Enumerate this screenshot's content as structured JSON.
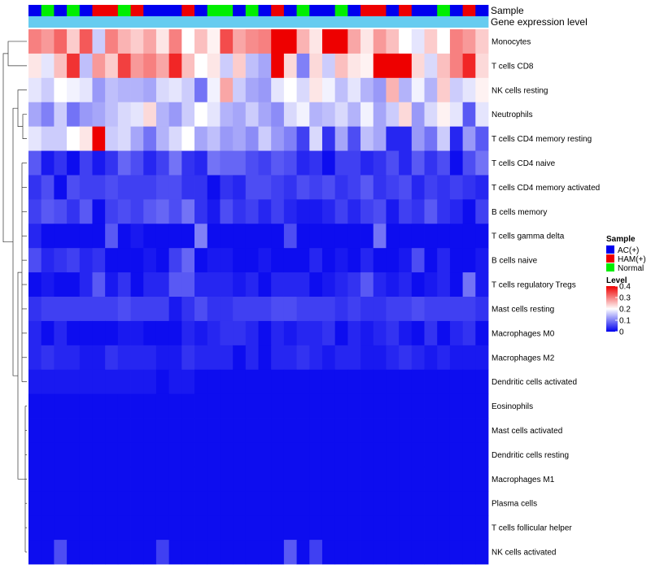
{
  "chart_data": {
    "type": "heatmap",
    "title": "",
    "annotation_tracks": [
      {
        "name": "Sample",
        "values": [
          "AC(+)",
          "Normal",
          "AC(+)",
          "Normal",
          "AC(+)",
          "HAM(+)",
          "HAM(+)",
          "Normal",
          "HAM(+)",
          "AC(+)",
          "AC(+)",
          "AC(+)",
          "HAM(+)",
          "AC(+)",
          "Normal",
          "Normal",
          "AC(+)",
          "Normal",
          "AC(+)",
          "HAM(+)",
          "AC(+)",
          "Normal",
          "AC(+)",
          "AC(+)",
          "Normal",
          "AC(+)",
          "HAM(+)",
          "HAM(+)",
          "AC(+)",
          "HAM(+)",
          "AC(+)",
          "AC(+)",
          "Normal",
          "AC(+)",
          "HAM(+)",
          "AC(+)"
        ]
      },
      {
        "name": "Gene expression level",
        "values": [
          "Gene expression level",
          "Gene expression level",
          "Gene expression level",
          "Gene expression level",
          "Gene expression level",
          "Gene expression level",
          "Gene expression level",
          "Gene expression level",
          "Gene expression level",
          "Gene expression level",
          "Gene expression level",
          "Gene expression level",
          "Gene expression level",
          "Gene expression level",
          "Gene expression level",
          "Gene expression level",
          "Gene expression level",
          "Gene expression level",
          "Gene expression level",
          "Gene expression level",
          "Gene expression level",
          "Gene expression level",
          "Gene expression level",
          "Gene expression level",
          "Gene expression level",
          "Gene expression level",
          "Gene expression level",
          "Gene expression level",
          "Gene expression level",
          "Gene expression level",
          "Gene expression level",
          "Gene expression level",
          "Gene expression level",
          "Gene expression level",
          "Gene expression level",
          "Gene expression level"
        ]
      }
    ],
    "rows": [
      {
        "label": "Monocytes",
        "values": [
          0.3,
          0.28,
          0.32,
          0.24,
          0.33,
          0.16,
          0.3,
          0.26,
          0.24,
          0.27,
          0.22,
          0.3,
          0.2,
          0.25,
          0.21,
          0.34,
          0.27,
          0.29,
          0.3,
          0.41,
          0.41,
          0.26,
          0.22,
          0.4,
          0.41,
          0.27,
          0.22,
          0.28,
          0.25,
          0.2,
          0.18,
          0.24,
          0.2,
          0.3,
          0.28,
          0.24
        ]
      },
      {
        "label": "T cells CD8",
        "values": [
          0.22,
          0.18,
          0.25,
          0.36,
          0.15,
          0.28,
          0.24,
          0.35,
          0.28,
          0.3,
          0.27,
          0.37,
          0.25,
          0.2,
          0.22,
          0.16,
          0.24,
          0.15,
          0.13,
          0.41,
          0.23,
          0.1,
          0.23,
          0.16,
          0.25,
          0.22,
          0.21,
          0.42,
          0.42,
          0.42,
          0.23,
          0.17,
          0.25,
          0.3,
          0.37,
          0.23
        ]
      },
      {
        "label": "NK cells resting",
        "values": [
          0.18,
          0.16,
          0.2,
          0.19,
          0.18,
          0.12,
          0.15,
          0.14,
          0.14,
          0.13,
          0.17,
          0.18,
          0.16,
          0.09,
          0.19,
          0.27,
          0.16,
          0.13,
          0.12,
          0.18,
          0.2,
          0.17,
          0.22,
          0.19,
          0.15,
          0.18,
          0.14,
          0.12,
          0.26,
          0.14,
          0.19,
          0.14,
          0.24,
          0.16,
          0.18,
          0.21
        ]
      },
      {
        "label": "Neutrophils",
        "values": [
          0.13,
          0.1,
          0.16,
          0.09,
          0.12,
          0.13,
          0.15,
          0.17,
          0.18,
          0.23,
          0.14,
          0.12,
          0.16,
          0.2,
          0.18,
          0.14,
          0.13,
          0.16,
          0.13,
          0.11,
          0.17,
          0.19,
          0.14,
          0.15,
          0.17,
          0.14,
          0.19,
          0.13,
          0.16,
          0.23,
          0.12,
          0.17,
          0.21,
          0.18,
          0.07,
          0.18
        ]
      },
      {
        "label": "T cells CD4 memory resting",
        "values": [
          0.18,
          0.16,
          0.16,
          0.2,
          0.22,
          0.4,
          0.16,
          0.17,
          0.13,
          0.09,
          0.14,
          0.17,
          0.2,
          0.13,
          0.15,
          0.12,
          0.13,
          0.11,
          0.16,
          0.12,
          0.1,
          0.05,
          0.17,
          0.04,
          0.13,
          0.06,
          0.15,
          0.13,
          0.03,
          0.03,
          0.12,
          0.09,
          0.16,
          0.03,
          0.12,
          0.07
        ]
      },
      {
        "label": "T cells CD4 naive",
        "values": [
          0.07,
          0.02,
          0.04,
          0.01,
          0.05,
          0.02,
          0.04,
          0.08,
          0.06,
          0.03,
          0.05,
          0.09,
          0.04,
          0.03,
          0.09,
          0.08,
          0.08,
          0.06,
          0.05,
          0.07,
          0.06,
          0.03,
          0.04,
          0.01,
          0.05,
          0.05,
          0.03,
          0.04,
          0.06,
          0.03,
          0.07,
          0.04,
          0.06,
          0.01,
          0.06,
          0.09
        ]
      },
      {
        "label": "T cells CD4 memory activated",
        "values": [
          0.04,
          0.06,
          0.01,
          0.06,
          0.05,
          0.05,
          0.06,
          0.05,
          0.05,
          0.05,
          0.06,
          0.06,
          0.04,
          0.04,
          0.01,
          0.04,
          0.03,
          0.06,
          0.06,
          0.05,
          0.04,
          0.06,
          0.05,
          0.06,
          0.04,
          0.05,
          0.07,
          0.04,
          0.05,
          0.06,
          0.03,
          0.05,
          0.04,
          0.05,
          0.04,
          0.03
        ]
      },
      {
        "label": "B cells memory",
        "values": [
          0.05,
          0.07,
          0.06,
          0.04,
          0.07,
          0.01,
          0.05,
          0.06,
          0.05,
          0.07,
          0.08,
          0.06,
          0.09,
          0.04,
          0.02,
          0.06,
          0.04,
          0.05,
          0.03,
          0.05,
          0.03,
          0.02,
          0.02,
          0.03,
          0.05,
          0.03,
          0.05,
          0.06,
          0.02,
          0.05,
          0.04,
          0.07,
          0.04,
          0.03,
          0.01,
          0.05
        ]
      },
      {
        "label": "T cells gamma delta",
        "values": [
          0.03,
          0.01,
          0.01,
          0.01,
          0.01,
          0.01,
          0.07,
          0.01,
          0.02,
          0.01,
          0.01,
          0.01,
          0.01,
          0.1,
          0.01,
          0.01,
          0.01,
          0.01,
          0.01,
          0.01,
          0.06,
          0.01,
          0.01,
          0.01,
          0.01,
          0.01,
          0.01,
          0.09,
          0.01,
          0.01,
          0.01,
          0.01,
          0.01,
          0.01,
          0.01,
          0.01
        ]
      },
      {
        "label": "B cells naive",
        "values": [
          0.06,
          0.03,
          0.04,
          0.05,
          0.03,
          0.04,
          0.01,
          0.01,
          0.01,
          0.02,
          0.01,
          0.05,
          0.08,
          0.01,
          0.02,
          0.02,
          0.01,
          0.01,
          0.02,
          0.01,
          0.01,
          0.01,
          0.03,
          0.01,
          0.02,
          0.01,
          0.03,
          0.01,
          0.01,
          0.02,
          0.06,
          0.01,
          0.03,
          0.01,
          0.01,
          0.02
        ]
      },
      {
        "label": "T cells regulatory  Tregs",
        "values": [
          0.01,
          0.02,
          0.01,
          0.01,
          0.03,
          0.07,
          0.02,
          0.04,
          0.01,
          0.03,
          0.03,
          0.07,
          0.07,
          0.03,
          0.03,
          0.03,
          0.02,
          0.03,
          0.01,
          0.03,
          0.03,
          0.03,
          0.01,
          0.02,
          0.03,
          0.04,
          0.07,
          0.03,
          0.02,
          0.03,
          0.01,
          0.02,
          0.03,
          0.01,
          0.09,
          0.02
        ]
      },
      {
        "label": "Mast cells resting",
        "values": [
          0.04,
          0.05,
          0.05,
          0.05,
          0.05,
          0.05,
          0.05,
          0.06,
          0.05,
          0.05,
          0.05,
          0.02,
          0.04,
          0.06,
          0.04,
          0.04,
          0.05,
          0.05,
          0.05,
          0.06,
          0.06,
          0.05,
          0.05,
          0.05,
          0.04,
          0.05,
          0.04,
          0.04,
          0.05,
          0.05,
          0.06,
          0.05,
          0.05,
          0.05,
          0.05,
          0.04
        ]
      },
      {
        "label": "Macrophages M0",
        "values": [
          0.03,
          0.01,
          0.03,
          0.01,
          0.01,
          0.01,
          0.01,
          0.02,
          0.02,
          0.01,
          0.01,
          0.01,
          0.03,
          0.02,
          0.03,
          0.04,
          0.04,
          0.03,
          0.01,
          0.03,
          0.02,
          0.03,
          0.03,
          0.04,
          0.01,
          0.03,
          0.02,
          0.03,
          0.04,
          0.02,
          0.01,
          0.04,
          0.01,
          0.03,
          0.04,
          0.01
        ]
      },
      {
        "label": "Macrophages M2",
        "values": [
          0.03,
          0.04,
          0.03,
          0.03,
          0.02,
          0.02,
          0.04,
          0.03,
          0.03,
          0.03,
          0.02,
          0.02,
          0.04,
          0.03,
          0.03,
          0.03,
          0.01,
          0.03,
          0.01,
          0.03,
          0.03,
          0.04,
          0.03,
          0.02,
          0.03,
          0.03,
          0.02,
          0.02,
          0.03,
          0.04,
          0.03,
          0.02,
          0.03,
          0.02,
          0.02,
          0.02
        ]
      },
      {
        "label": "Dendritic cells activated",
        "values": [
          0.02,
          0.02,
          0.02,
          0.02,
          0.02,
          0.02,
          0.02,
          0.02,
          0.02,
          0.02,
          0.01,
          0.02,
          0.02,
          0.01,
          0.01,
          0.01,
          0.01,
          0.01,
          0.01,
          0.01,
          0.01,
          0.01,
          0.01,
          0.01,
          0.01,
          0.01,
          0.01,
          0.01,
          0.01,
          0.01,
          0.01,
          0.01,
          0.01,
          0.01,
          0.01,
          0.01
        ]
      },
      {
        "label": "Eosinophils",
        "values": [
          0.01,
          0.01,
          0.01,
          0.01,
          0.01,
          0.01,
          0.01,
          0.01,
          0.01,
          0.01,
          0.01,
          0.01,
          0.01,
          0.01,
          0.01,
          0.01,
          0.01,
          0.01,
          0.01,
          0.01,
          0.01,
          0.01,
          0.01,
          0.01,
          0.01,
          0.01,
          0.01,
          0.01,
          0.01,
          0.01,
          0.01,
          0.01,
          0.01,
          0.01,
          0.01,
          0.01
        ]
      },
      {
        "label": "Mast cells activated",
        "values": [
          0.01,
          0.01,
          0.01,
          0.01,
          0.01,
          0.01,
          0.01,
          0.01,
          0.01,
          0.01,
          0.01,
          0.01,
          0.01,
          0.01,
          0.01,
          0.01,
          0.01,
          0.01,
          0.01,
          0.01,
          0.01,
          0.01,
          0.01,
          0.01,
          0.01,
          0.01,
          0.01,
          0.01,
          0.01,
          0.01,
          0.01,
          0.01,
          0.01,
          0.01,
          0.01,
          0.01
        ]
      },
      {
        "label": "Dendritic cells resting",
        "values": [
          0.01,
          0.01,
          0.01,
          0.01,
          0.01,
          0.01,
          0.01,
          0.01,
          0.01,
          0.01,
          0.01,
          0.01,
          0.01,
          0.01,
          0.01,
          0.01,
          0.01,
          0.01,
          0.01,
          0.01,
          0.01,
          0.01,
          0.01,
          0.01,
          0.01,
          0.01,
          0.01,
          0.01,
          0.01,
          0.01,
          0.01,
          0.01,
          0.01,
          0.01,
          0.01,
          0.01
        ]
      },
      {
        "label": "Macrophages M1",
        "values": [
          0.01,
          0.01,
          0.01,
          0.01,
          0.01,
          0.01,
          0.01,
          0.01,
          0.01,
          0.01,
          0.01,
          0.01,
          0.01,
          0.01,
          0.01,
          0.01,
          0.01,
          0.01,
          0.01,
          0.01,
          0.01,
          0.01,
          0.01,
          0.01,
          0.01,
          0.01,
          0.01,
          0.01,
          0.01,
          0.01,
          0.01,
          0.01,
          0.01,
          0.01,
          0.01,
          0.01
        ]
      },
      {
        "label": "Plasma cells",
        "values": [
          0.01,
          0.01,
          0.01,
          0.01,
          0.01,
          0.01,
          0.01,
          0.01,
          0.01,
          0.01,
          0.01,
          0.01,
          0.01,
          0.01,
          0.01,
          0.01,
          0.01,
          0.01,
          0.01,
          0.01,
          0.01,
          0.01,
          0.01,
          0.01,
          0.01,
          0.01,
          0.01,
          0.01,
          0.01,
          0.01,
          0.01,
          0.01,
          0.01,
          0.01,
          0.01,
          0.01
        ]
      },
      {
        "label": "T cells follicular helper",
        "values": [
          0.01,
          0.01,
          0.01,
          0.01,
          0.01,
          0.01,
          0.01,
          0.01,
          0.01,
          0.01,
          0.01,
          0.01,
          0.01,
          0.01,
          0.01,
          0.01,
          0.01,
          0.01,
          0.01,
          0.01,
          0.01,
          0.01,
          0.01,
          0.01,
          0.01,
          0.01,
          0.01,
          0.01,
          0.01,
          0.01,
          0.01,
          0.01,
          0.01,
          0.01,
          0.01,
          0.01
        ]
      },
      {
        "label": "NK cells activated",
        "values": [
          0.01,
          0.01,
          0.06,
          0.01,
          0.01,
          0.01,
          0.01,
          0.01,
          0.01,
          0.01,
          0.05,
          0.01,
          0.01,
          0.01,
          0.01,
          0.01,
          0.01,
          0.01,
          0.01,
          0.01,
          0.07,
          0.01,
          0.05,
          0.01,
          0.01,
          0.01,
          0.01,
          0.01,
          0.01,
          0.01,
          0.01,
          0.01,
          0.01,
          0.01,
          0.01,
          0.01
        ]
      }
    ],
    "legends": {
      "sample": {
        "title": "Sample",
        "entries": [
          {
            "label": "AC(+)",
            "color": "#0000ee"
          },
          {
            "label": "HAM(+)",
            "color": "#ee0000"
          },
          {
            "label": "Normal",
            "color": "#00ee00"
          }
        ]
      },
      "level": {
        "title": "Level",
        "range": [
          0,
          0.4
        ],
        "ticks": [
          {
            "value": 0.4,
            "label": "0.4"
          },
          {
            "value": 0.3,
            "label": "0.3"
          },
          {
            "value": 0.2,
            "label": "0.2"
          },
          {
            "value": 0.1,
            "label": "0.1"
          },
          {
            "value": 0,
            "label": "0"
          }
        ]
      }
    },
    "color_scale": {
      "low": "#0000ee",
      "mid": "#ffffff",
      "high": "#ee0000",
      "min": 0,
      "mid_value": 0.2,
      "max": 0.4
    },
    "gene_track_color": "#66ccf0"
  }
}
